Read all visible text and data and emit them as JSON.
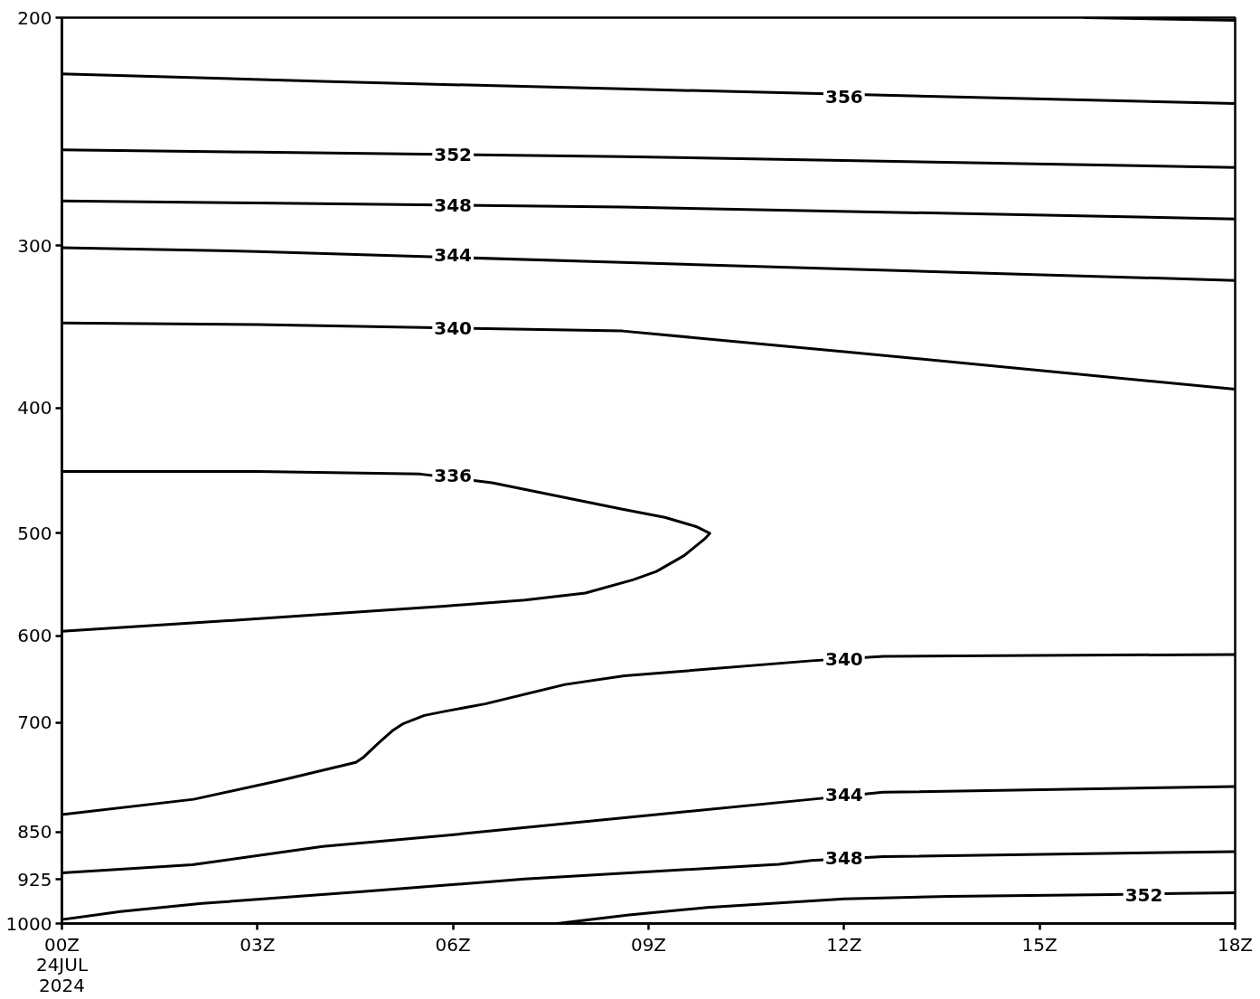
{
  "chart_data": {
    "type": "line",
    "xlim": [
      0,
      18
    ],
    "xticks": [
      {
        "value": 0,
        "label": "00Z\n24JUL\n2024"
      },
      {
        "value": 3,
        "label": "03Z"
      },
      {
        "value": 6,
        "label": "06Z"
      },
      {
        "value": 9,
        "label": "09Z"
      },
      {
        "value": 12,
        "label": "12Z"
      },
      {
        "value": 15,
        "label": "15Z"
      },
      {
        "value": 18,
        "label": "18Z"
      }
    ],
    "ylim": [
      1000,
      200
    ],
    "yticks": [
      200,
      300,
      400,
      500,
      600,
      700,
      850,
      925,
      1000
    ],
    "log": true,
    "grid": false,
    "series": [
      {
        "color": "#000000",
        "x": [
          15.7,
          18
        ],
        "values": [
          200,
          201
        ]
      },
      {
        "color": "#000000",
        "x": [
          0,
          4,
          8.6,
          18
        ],
        "values": [
          221,
          224,
          227,
          233
        ]
      },
      {
        "color": "#000000",
        "x": [
          0,
          3,
          8.6,
          18
        ],
        "values": [
          253,
          254,
          256,
          261
        ]
      },
      {
        "color": "#000000",
        "x": [
          0,
          3,
          8.6,
          18
        ],
        "values": [
          277,
          278,
          280,
          286
        ]
      },
      {
        "color": "#000000",
        "x": [
          0,
          3,
          8.6,
          18
        ],
        "values": [
          301,
          303,
          309,
          319
        ]
      },
      {
        "color": "#000000",
        "x": [
          0,
          3,
          8.6,
          12,
          18
        ],
        "values": [
          344,
          345,
          349,
          362,
          387
        ]
      },
      {
        "color": "#000000",
        "x": [
          0,
          3,
          5.5,
          6.6,
          8.6,
          9.25,
          9.73,
          9.94,
          9.86,
          9.55,
          9.12,
          8.76,
          8.03,
          7.1,
          5.87,
          2.77,
          0
        ],
        "values": [
          448,
          448,
          450,
          457,
          479,
          486,
          494,
          500,
          505,
          520,
          535,
          543,
          556,
          563,
          569,
          583,
          595
        ]
      },
      {
        "color": "#000000",
        "x": [
          0,
          2.02,
          3.38,
          4.51,
          4.63,
          4.88,
          5.07,
          5.24,
          5.56,
          5.87,
          6.49,
          7.72,
          8.63,
          11.5,
          12.6,
          18
        ],
        "values": [
          824,
          802,
          775,
          751,
          744,
          724,
          710,
          701,
          691,
          686,
          677,
          654,
          644,
          627,
          622,
          620
        ]
      },
      {
        "color": "#000000",
        "x": [
          0,
          2,
          4,
          5.9,
          8.7,
          11.5,
          12.6,
          18
        ],
        "values": [
          914,
          901,
          872,
          855,
          828,
          802,
          792,
          784
        ]
      },
      {
        "color": "#000000",
        "x": [
          0,
          0.9,
          2.15,
          4.6,
          7.1,
          8.7,
          11,
          11.5,
          12.6,
          18
        ],
        "values": [
          993,
          979,
          965,
          945,
          924,
          914,
          900,
          894,
          888,
          880
        ]
      },
      {
        "color": "#000000",
        "x": [
          7.6,
          8.7,
          9.9,
          12,
          13.6,
          16.1,
          17.1,
          18
        ],
        "values": [
          1000,
          985,
          972,
          957,
          953,
          950,
          948,
          947
        ]
      }
    ],
    "annotations": [
      {
        "text": "356",
        "x": 12,
        "y": 230
      },
      {
        "text": "352",
        "x": 6,
        "y": 255
      },
      {
        "text": "348",
        "x": 6,
        "y": 279
      },
      {
        "text": "344",
        "x": 6,
        "y": 305
      },
      {
        "text": "340",
        "x": 6,
        "y": 347
      },
      {
        "text": "336",
        "x": 6,
        "y": 451
      },
      {
        "text": "340",
        "x": 12,
        "y": 625
      },
      {
        "text": "344",
        "x": 12,
        "y": 796
      },
      {
        "text": "348",
        "x": 12,
        "y": 890
      },
      {
        "text": "352",
        "x": 16.6,
        "y": 950
      }
    ]
  }
}
